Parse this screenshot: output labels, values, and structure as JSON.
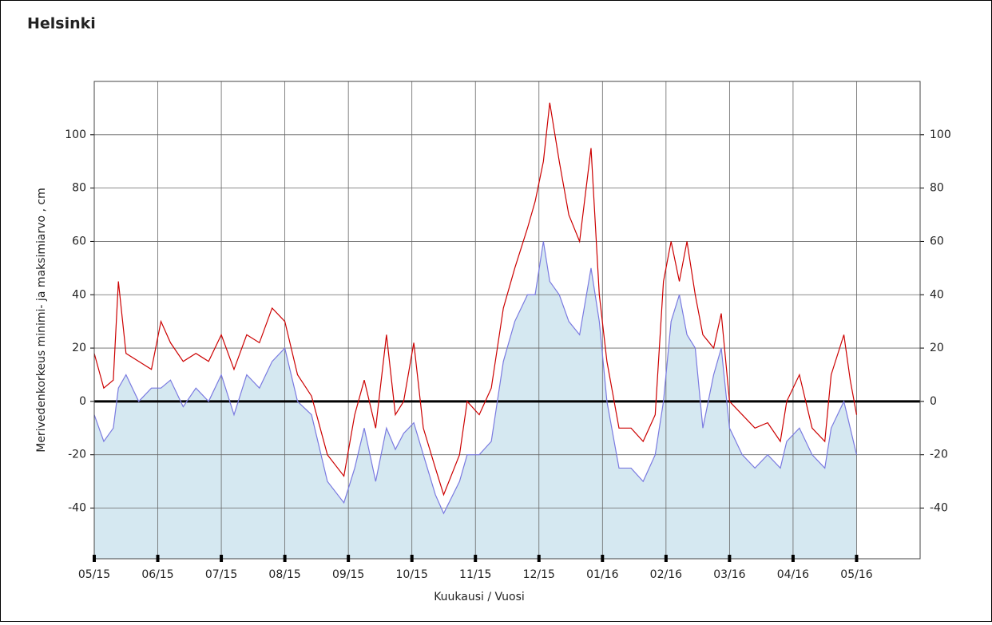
{
  "chart_data": {
    "type": "line",
    "title": "Helsinki",
    "y_label": "Merivedenkorkeus minimi- ja maksimiarvo , cm",
    "x_label": "Kuukausi / Vuosi",
    "x": [
      0,
      0.15,
      0.3,
      0.38,
      0.5,
      0.7,
      0.9,
      1.05,
      1.2,
      1.4,
      1.6,
      1.8,
      2.0,
      2.2,
      2.4,
      2.6,
      2.8,
      3.0,
      3.2,
      3.42,
      3.67,
      3.93,
      4.1,
      4.25,
      4.43,
      4.6,
      4.74,
      4.87,
      5.03,
      5.18,
      5.37,
      5.5,
      5.75,
      5.87,
      6.06,
      6.25,
      6.44,
      6.62,
      6.82,
      6.94,
      7.07,
      7.17,
      7.32,
      7.47,
      7.64,
      7.82,
      7.95,
      8.07,
      8.26,
      8.45,
      8.64,
      8.83,
      8.96,
      9.08,
      9.21,
      9.33,
      9.46,
      9.58,
      9.75,
      9.87,
      10.0,
      10.2,
      10.4,
      10.6,
      10.8,
      10.9,
      11.1,
      11.3,
      11.5,
      11.6,
      11.8,
      11.9,
      12.0
    ],
    "series": [
      {
        "color": "#cc0000",
        "values": [
          18,
          5,
          8,
          45,
          18,
          15,
          12,
          30,
          22,
          15,
          18,
          15,
          25,
          12,
          25,
          22,
          35,
          30,
          10,
          2,
          -20,
          -28,
          -5,
          8,
          -10,
          25,
          -5,
          0,
          22,
          -10,
          -25,
          -35,
          -20,
          0,
          -5,
          5,
          35,
          50,
          65,
          75,
          90,
          112,
          90,
          70,
          60,
          95,
          40,
          15,
          -10,
          -10,
          -15,
          -5,
          45,
          60,
          45,
          60,
          40,
          25,
          20,
          33,
          0,
          -5,
          -10,
          -8,
          -15,
          0,
          10,
          -10,
          -15,
          10,
          25,
          8,
          -5
        ]
      },
      {
        "color": "#7a7ae0",
        "fill": "#d5e8f1",
        "values": [
          -5,
          -15,
          -10,
          5,
          10,
          0,
          5,
          5,
          8,
          -2,
          5,
          0,
          10,
          -5,
          10,
          5,
          15,
          20,
          0,
          -5,
          -30,
          -38,
          -25,
          -10,
          -30,
          -10,
          -18,
          -12,
          -8,
          -20,
          -35,
          -42,
          -30,
          -20,
          -20,
          -15,
          15,
          30,
          40,
          40,
          60,
          45,
          40,
          30,
          25,
          50,
          30,
          0,
          -25,
          -25,
          -30,
          -20,
          0,
          30,
          40,
          25,
          20,
          -10,
          10,
          20,
          -10,
          -20,
          -25,
          -20,
          -25,
          -15,
          -10,
          -20,
          -25,
          -10,
          0,
          -10,
          -20
        ]
      }
    ],
    "xlim": [
      0,
      13
    ],
    "xticks": [
      {
        "value": 0,
        "label": "05/15"
      },
      {
        "value": 1,
        "label": "06/15"
      },
      {
        "value": 2,
        "label": "07/15"
      },
      {
        "value": 3,
        "label": "08/15"
      },
      {
        "value": 4,
        "label": "09/15"
      },
      {
        "value": 5,
        "label": "10/15"
      },
      {
        "value": 6,
        "label": "11/15"
      },
      {
        "value": 7,
        "label": "12/15"
      },
      {
        "value": 8,
        "label": "01/16"
      },
      {
        "value": 9,
        "label": "02/16"
      },
      {
        "value": 10,
        "label": "03/16"
      },
      {
        "value": 11,
        "label": "04/16"
      },
      {
        "value": 12,
        "label": "05/16"
      }
    ],
    "ylim": [
      -59,
      120
    ],
    "yticks": [
      -40,
      -20,
      0,
      20,
      40,
      60,
      80,
      100
    ],
    "grid": true
  }
}
